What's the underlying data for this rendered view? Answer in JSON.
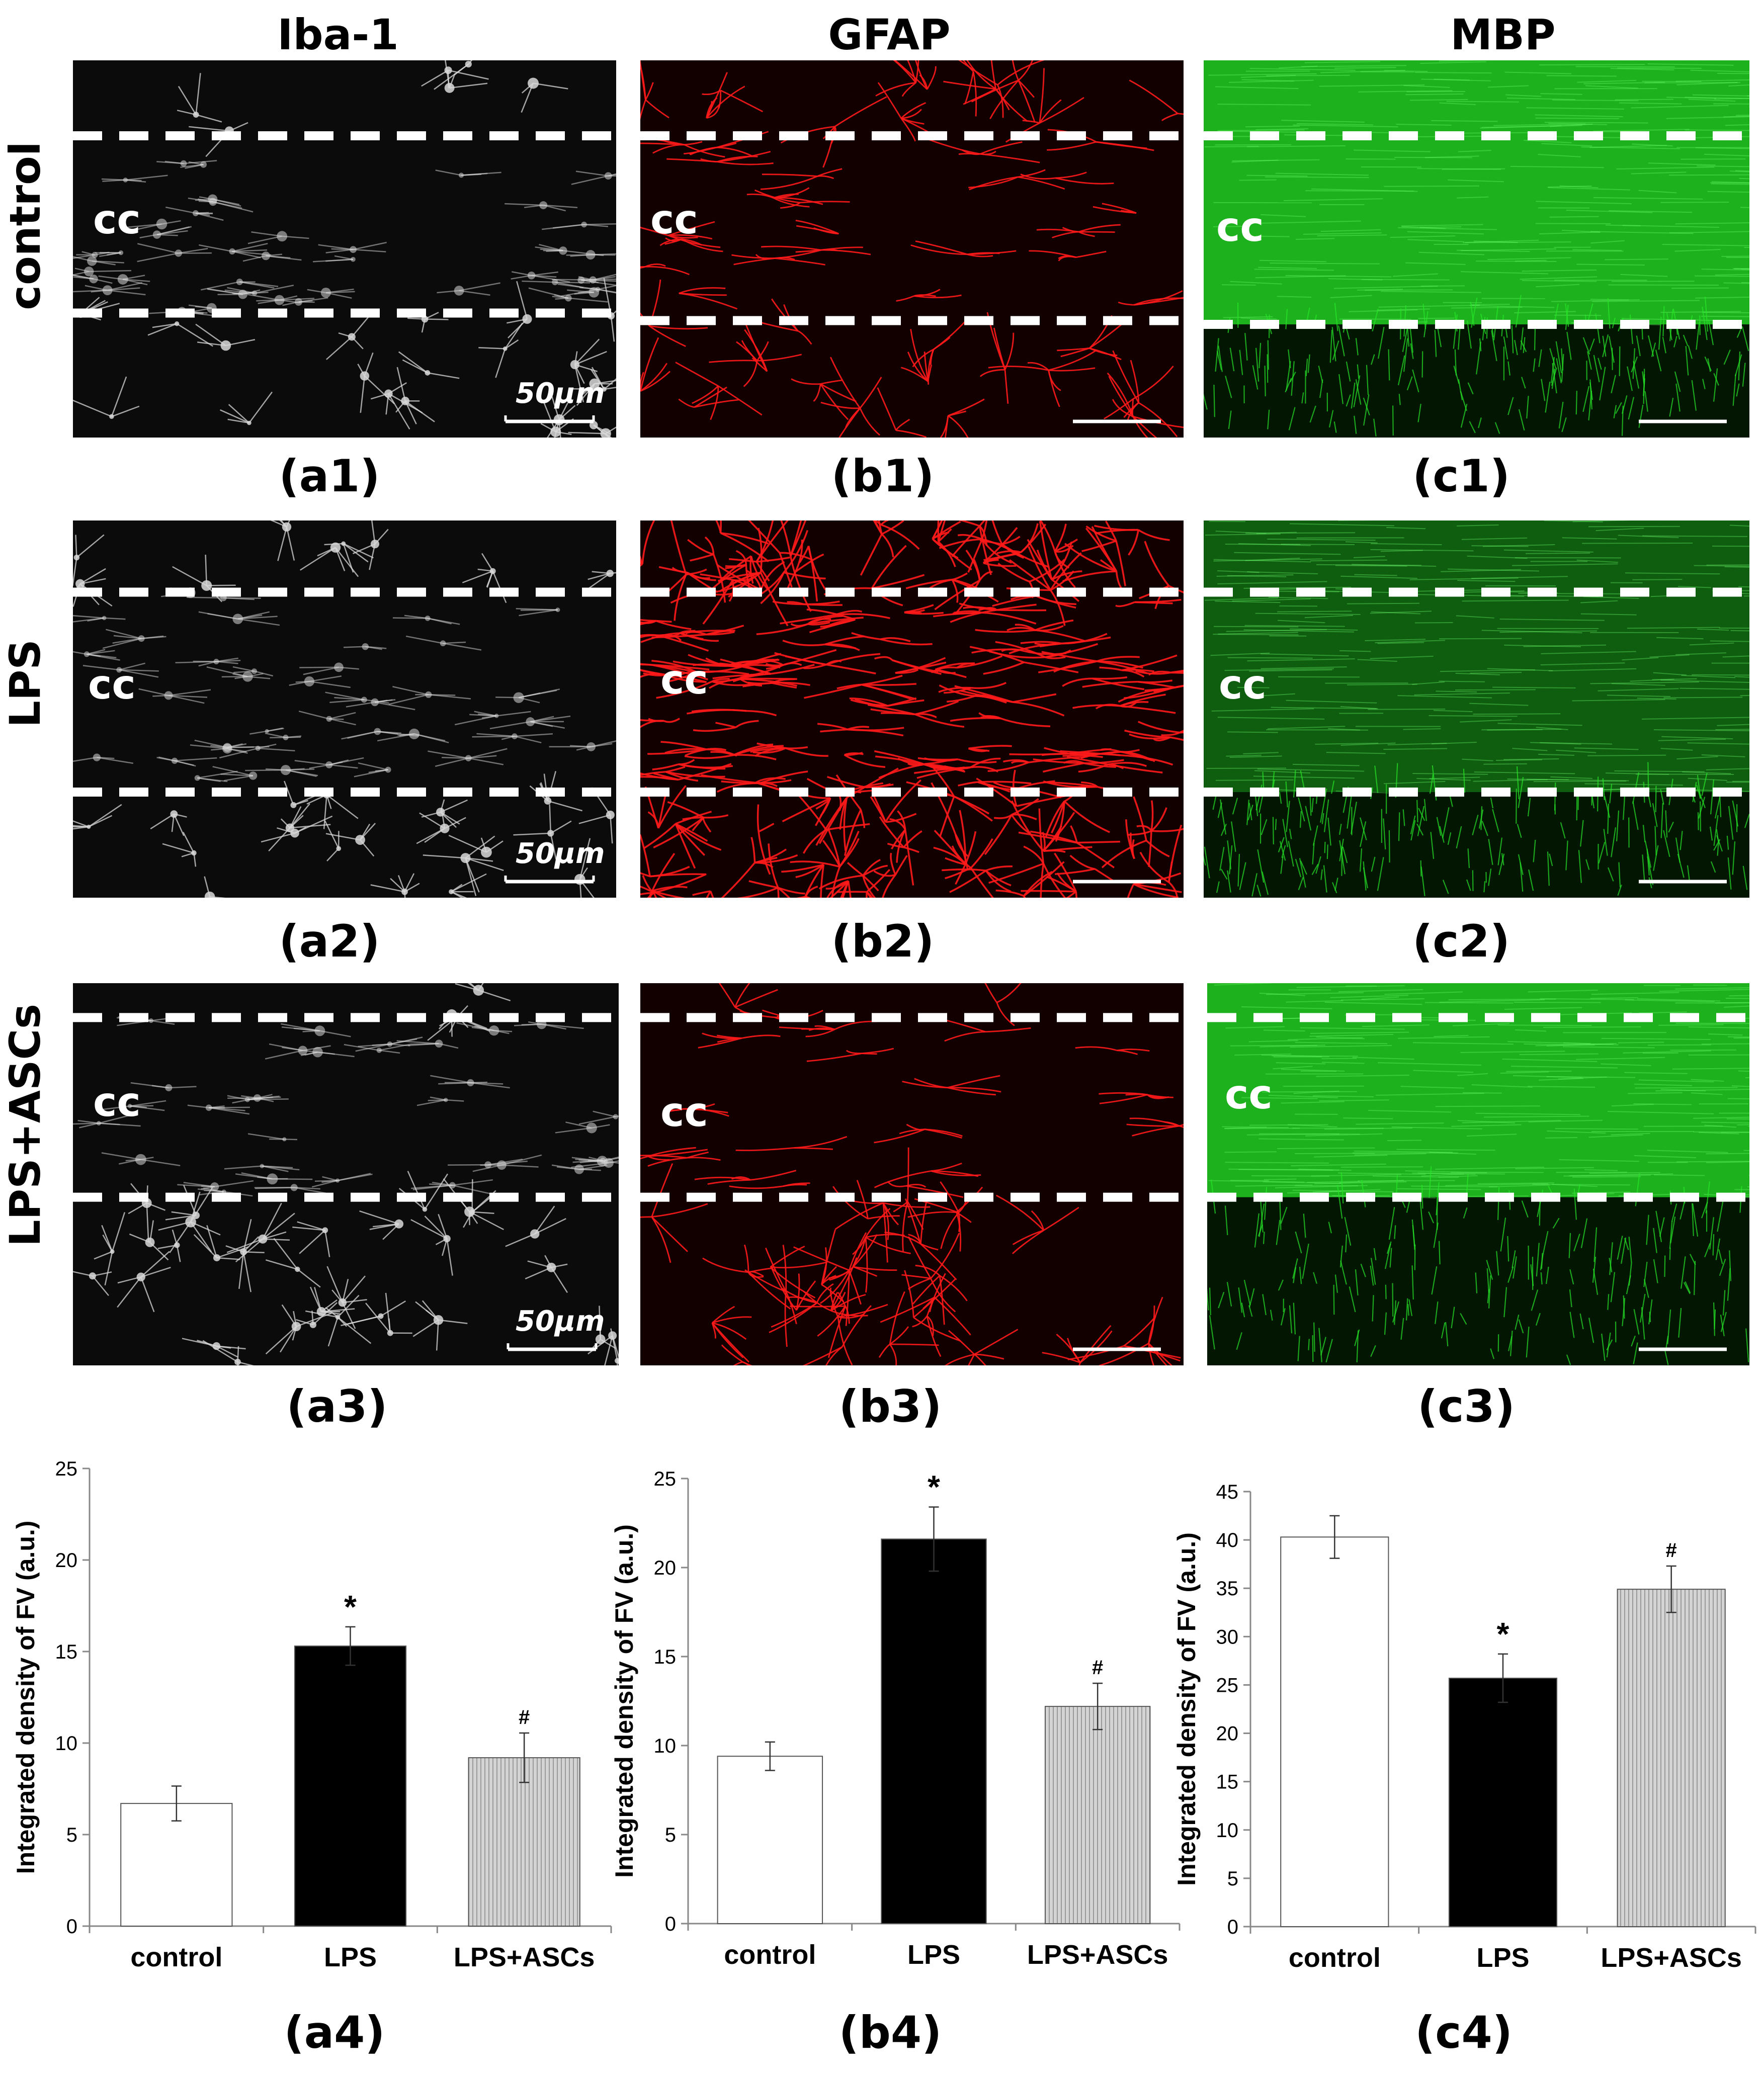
{
  "columns": [
    "Iba-1",
    "GFAP",
    "MBP"
  ],
  "rows": [
    "control",
    "LPS",
    "LPS+ASCs"
  ],
  "colors": {
    "iba_bg": "#0b0b0b",
    "iba_fg": "#d9d9d9",
    "gfap_bg": "#120000",
    "gfap_fg": "#ff1a1a",
    "mbp_bg": "#062806",
    "mbp_fg": "#27e627",
    "dash": "#ffffff"
  },
  "panels": {
    "a1": {
      "label": "(a1)",
      "cc": "cc",
      "scale": "50μm"
    },
    "b1": {
      "label": "(b1)",
      "cc": "cc"
    },
    "c1": {
      "label": "(c1)",
      "cc": "cc"
    },
    "a2": {
      "label": "(a2)",
      "cc": "cc",
      "scale": "50μm"
    },
    "b2": {
      "label": "(b2)",
      "cc": "cc"
    },
    "c2": {
      "label": "(c2)",
      "cc": "cc"
    },
    "a3": {
      "label": "(a3)",
      "cc": "cc",
      "scale": "50μm"
    },
    "b3": {
      "label": "(b3)",
      "cc": "cc"
    },
    "c3": {
      "label": "(c3)",
      "cc": "cc"
    },
    "a4": {
      "label": "(a4)"
    },
    "b4": {
      "label": "(b4)"
    },
    "c4": {
      "label": "(c4)"
    }
  },
  "chart_data": [
    {
      "type": "bar",
      "categories": [
        "control",
        "LPS",
        "LPS+ASCs"
      ],
      "values": [
        6.7,
        15.3,
        9.2
      ],
      "errors": [
        0.95,
        1.05,
        1.35
      ],
      "significance": [
        "",
        "*",
        "#"
      ],
      "fills": [
        "white",
        "black",
        "light-grey-hatched"
      ],
      "ylabel": "Integrated density of FV (a.u.)",
      "ylim": [
        0,
        25
      ],
      "yticks": [
        0,
        5,
        10,
        15,
        20,
        25
      ],
      "grid": false
    },
    {
      "type": "bar",
      "categories": [
        "control",
        "LPS",
        "LPS+ASCs"
      ],
      "values": [
        9.4,
        21.6,
        12.2
      ],
      "errors": [
        0.8,
        1.8,
        1.3
      ],
      "significance": [
        "",
        "*",
        "#"
      ],
      "fills": [
        "white",
        "black",
        "light-grey-hatched"
      ],
      "ylabel": "Integrated density of FV (a.u.)",
      "ylim": [
        0,
        25
      ],
      "yticks": [
        0,
        5,
        10,
        15,
        20,
        25
      ],
      "grid": false
    },
    {
      "type": "bar",
      "categories": [
        "control",
        "LPS",
        "LPS+ASCs"
      ],
      "values": [
        40.3,
        25.7,
        34.9
      ],
      "errors": [
        2.2,
        2.5,
        2.4
      ],
      "significance": [
        "",
        "*",
        "#"
      ],
      "fills": [
        "white",
        "black",
        "light-grey-hatched"
      ],
      "ylabel": "Integrated density of FV (a.u.)",
      "ylim": [
        0,
        45
      ],
      "yticks": [
        0,
        5,
        10,
        15,
        20,
        25,
        30,
        35,
        40,
        45
      ],
      "grid": false
    }
  ]
}
